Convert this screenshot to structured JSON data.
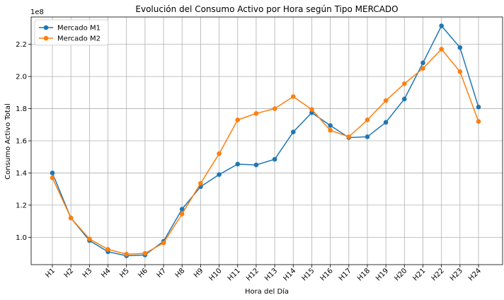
{
  "chart_data": {
    "type": "line",
    "title": "Evolución del Consumo Activo por Hora según Tipo MERCADO",
    "xlabel": "Hora del Día",
    "ylabel": "Consumo Activo Total",
    "y_scale_label": "1e8",
    "categories": [
      "H1",
      "H2",
      "H3",
      "H4",
      "H5",
      "H6",
      "H7",
      "H8",
      "H9",
      "H10",
      "H11",
      "H12",
      "H13",
      "H14",
      "H15",
      "H16",
      "H17",
      "H18",
      "H19",
      "H20",
      "H21",
      "H22",
      "H23",
      "H24"
    ],
    "y_ticks": [
      1.0,
      1.2,
      1.4,
      1.6,
      1.8,
      2.0,
      2.2
    ],
    "y_tick_labels": [
      "1.0",
      "1.2",
      "1.4",
      "1.6",
      "1.8",
      "2.0",
      "2.2"
    ],
    "ylim": [
      0.83,
      2.37
    ],
    "grid": true,
    "legend_position": "top-left",
    "series": [
      {
        "name": "Mercado M1",
        "color": "#1f77b4",
        "values": [
          1.4,
          1.12,
          0.98,
          0.91,
          0.885,
          0.89,
          0.975,
          1.175,
          1.315,
          1.39,
          1.455,
          1.45,
          1.485,
          1.655,
          1.775,
          1.695,
          1.62,
          1.625,
          1.715,
          1.86,
          2.085,
          2.315,
          2.18,
          1.81
        ]
      },
      {
        "name": "Mercado M2",
        "color": "#ff7f0e",
        "values": [
          1.37,
          1.12,
          0.99,
          0.925,
          0.895,
          0.9,
          0.965,
          1.145,
          1.335,
          1.52,
          1.73,
          1.77,
          1.8,
          1.875,
          1.795,
          1.665,
          1.625,
          1.73,
          1.85,
          1.955,
          2.05,
          2.17,
          2.03,
          1.72
        ]
      }
    ]
  }
}
